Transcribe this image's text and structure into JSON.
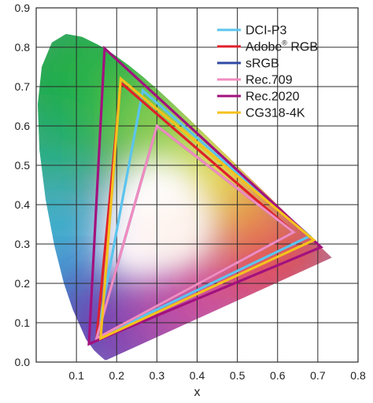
{
  "chart_data": {
    "type": "scatter",
    "title": "",
    "xlabel": "x",
    "ylabel": "",
    "xlim": [
      0,
      0.8
    ],
    "ylim": [
      0,
      0.9
    ],
    "x_ticks": [
      "0.1",
      "0.2",
      "0.3",
      "0.4",
      "0.5",
      "0.6",
      "0.7",
      "0.8"
    ],
    "y_ticks": [
      "0.0",
      "0.1",
      "0.2",
      "0.3",
      "0.4",
      "0.5",
      "0.6",
      "0.7",
      "0.8",
      "0.9"
    ],
    "grid": true,
    "legend_position": "top-right",
    "spectral_locus": {
      "x": [
        0.1741,
        0.1738,
        0.1733,
        0.1726,
        0.1714,
        0.1689,
        0.1644,
        0.1566,
        0.144,
        0.1241,
        0.0913,
        0.0687,
        0.0454,
        0.0235,
        0.0082,
        0.0039,
        0.0139,
        0.0389,
        0.0743,
        0.1142,
        0.1547,
        0.1929,
        0.2296,
        0.2658,
        0.3016,
        0.3373,
        0.3731,
        0.4087,
        0.4441,
        0.4788,
        0.5125,
        0.5448,
        0.5752,
        0.6029,
        0.627,
        0.6482,
        0.6658,
        0.6801,
        0.6915,
        0.7006,
        0.7079,
        0.714,
        0.719,
        0.723,
        0.726,
        0.7283,
        0.73,
        0.7347
      ],
      "y": [
        0.005,
        0.0049,
        0.0048,
        0.0048,
        0.0051,
        0.0069,
        0.0109,
        0.0177,
        0.0297,
        0.0578,
        0.1327,
        0.2007,
        0.295,
        0.4127,
        0.5384,
        0.6548,
        0.7502,
        0.812,
        0.8338,
        0.8262,
        0.8059,
        0.7816,
        0.7543,
        0.7243,
        0.6923,
        0.6589,
        0.6245,
        0.5896,
        0.5547,
        0.5202,
        0.4866,
        0.4544,
        0.4242,
        0.3965,
        0.3725,
        0.3514,
        0.334,
        0.3197,
        0.3083,
        0.2993,
        0.292,
        0.2859,
        0.2809,
        0.277,
        0.274,
        0.2717,
        0.27,
        0.2653
      ]
    },
    "series": [
      {
        "name": "DCI-P3",
        "color": "#5bc4ee",
        "x": [
          0.68,
          0.265,
          0.15
        ],
        "y": [
          0.32,
          0.69,
          0.06
        ]
      },
      {
        "name": "Adobe® RGB",
        "color": "#e0202a",
        "x": [
          0.64,
          0.21,
          0.15
        ],
        "y": [
          0.33,
          0.71,
          0.06
        ]
      },
      {
        "name": "sRGB",
        "color": "#2f49a4",
        "x": [
          0.64,
          0.3,
          0.15
        ],
        "y": [
          0.33,
          0.6,
          0.06
        ]
      },
      {
        "name": "Rec.709",
        "color": "#f08cc0",
        "x": [
          0.64,
          0.3,
          0.15
        ],
        "y": [
          0.33,
          0.6,
          0.06
        ]
      },
      {
        "name": "Rec.2020",
        "color": "#a2117e",
        "x": [
          0.708,
          0.17,
          0.131
        ],
        "y": [
          0.292,
          0.797,
          0.046
        ]
      },
      {
        "name": "CG318-4K",
        "color": "#f4c21c",
        "x": [
          0.69,
          0.21,
          0.16
        ],
        "y": [
          0.31,
          0.72,
          0.06
        ]
      }
    ]
  },
  "legend": {
    "entries": [
      {
        "label": "DCI-P3",
        "sup": "",
        "after": "",
        "color": "#5bc4ee"
      },
      {
        "label": "Adobe",
        "sup": "®",
        "after": " RGB",
        "color": "#e0202a"
      },
      {
        "label": "sRGB",
        "sup": "",
        "after": "",
        "color": "#2f49a4"
      },
      {
        "label": "Rec.709",
        "sup": "",
        "after": "",
        "color": "#f08cc0"
      },
      {
        "label": "Rec.2020",
        "sup": "",
        "after": "",
        "color": "#a2117e"
      },
      {
        "label": "CG318-4K",
        "sup": "",
        "after": "",
        "color": "#f4c21c"
      }
    ]
  }
}
